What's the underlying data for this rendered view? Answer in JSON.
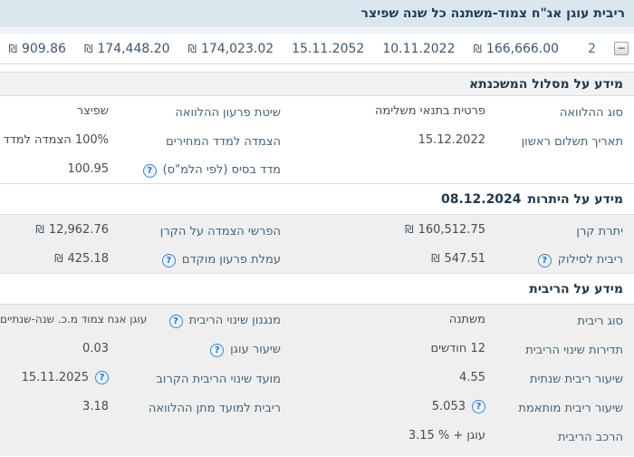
{
  "title_bar": {
    "title": "ריבית עוגן אג\"ח צמוד-משתנה כל שנה שפיצר"
  },
  "summary_row": {
    "collapse_glyph": "−",
    "collapse_icon": "minus-collapse-icon",
    "index": "2",
    "values": [
      {
        "text": "166,666.00",
        "currency": "₪"
      },
      {
        "text": "10.11.2022"
      },
      {
        "text": "15.11.2052"
      },
      {
        "text": "174,023.02",
        "currency": "₪"
      },
      {
        "text": "174,448.20",
        "currency": "₪"
      },
      {
        "text": "909.86",
        "currency": "₪"
      }
    ]
  },
  "help_icon": {
    "name": "help-icon",
    "glyph": "?"
  },
  "sections": [
    {
      "id": "track",
      "title": "מידע על מסלול המשכנתא",
      "date": "",
      "header_style": "gray",
      "body_style": "white",
      "rows": [
        {
          "pairs": [
            {
              "label": "סוג ההלוואה",
              "value": "פרטית בתנאי משלימה"
            },
            {
              "label": "שיטת פרעון ההלוואה",
              "value": "שפיצר"
            }
          ]
        },
        {
          "pairs": [
            {
              "label": "תאריך תשלום ראשון",
              "value": "15.12.2022"
            },
            {
              "label": "הצמדה למדד המחירים",
              "value": "100% הצמדה למדד"
            }
          ]
        },
        {
          "pairs": [
            null,
            {
              "label": "מדד בסיס (לפי הלמ\"ס)",
              "label_icon": true,
              "value": "100.95"
            }
          ]
        }
      ]
    },
    {
      "id": "balances",
      "title": "מידע על היתרות",
      "date": "08.12.2024",
      "header_style": "white",
      "body_style": "gray",
      "rows": [
        {
          "pairs": [
            {
              "label": "יתרת קרן",
              "value": "160,512.75",
              "currency": "₪"
            },
            {
              "label": "הפרשי הצמדה על הקרן",
              "value": "12,962.76",
              "currency": "₪"
            }
          ]
        },
        {
          "pairs": [
            {
              "label": "ריבית לסילוק",
              "label_icon": true,
              "value": "547.51",
              "currency": "₪"
            },
            {
              "label": "עמלת פרעון מוקדם",
              "label_icon": true,
              "value": "425.18",
              "currency": "₪"
            }
          ]
        }
      ]
    },
    {
      "id": "interest",
      "title": "מידע על הריבית",
      "date": "",
      "header_style": "white",
      "body_style": "gray",
      "fill": true,
      "rows": [
        {
          "pairs": [
            {
              "label": "סוג ריבית",
              "value": "משתנה"
            },
            {
              "label": "מנגנון שינוי הריבית",
              "label_icon": true,
              "value": "עוגן אגח צמוד מ.כ. שנה-שנתיים",
              "long": true
            }
          ]
        },
        {
          "pairs": [
            {
              "label": "תדירות שינוי הריבית",
              "value": "12 חודשים"
            },
            {
              "label": "שיעור עוגן",
              "label_icon": true,
              "value": "0.03"
            }
          ]
        },
        {
          "pairs": [
            {
              "label": "שיעור ריבית שנתית",
              "value": "4.55"
            },
            {
              "label": "מועד שינוי הריבית הקרוב",
              "value": "15.11.2025",
              "value_icon": true
            }
          ]
        },
        {
          "pairs": [
            {
              "label": "שיעור ריבית מותאמת",
              "value": "5.053",
              "value_icon": true
            },
            {
              "label": "ריבית למועד מתן ההלוואה",
              "value": "3.18"
            }
          ]
        },
        {
          "pairs": [
            {
              "label": "הרכב הריבית",
              "value": "עוגן + ‎3.15 %‎"
            },
            null
          ]
        }
      ]
    }
  ],
  "colors": {
    "title_bar_bg": "#dbe7ee",
    "title_strip_bg": "#edf3f7",
    "title_text": "#1e3c55",
    "section_header_gray_bg": "#f2f2f2",
    "row_gray_bg": "#efefef",
    "label_text": "#456379",
    "value_text": "#4c4c4c",
    "summary_text": "#41566a",
    "border": "#dbdbdb",
    "help_icon_blue": "#2b72bd"
  }
}
